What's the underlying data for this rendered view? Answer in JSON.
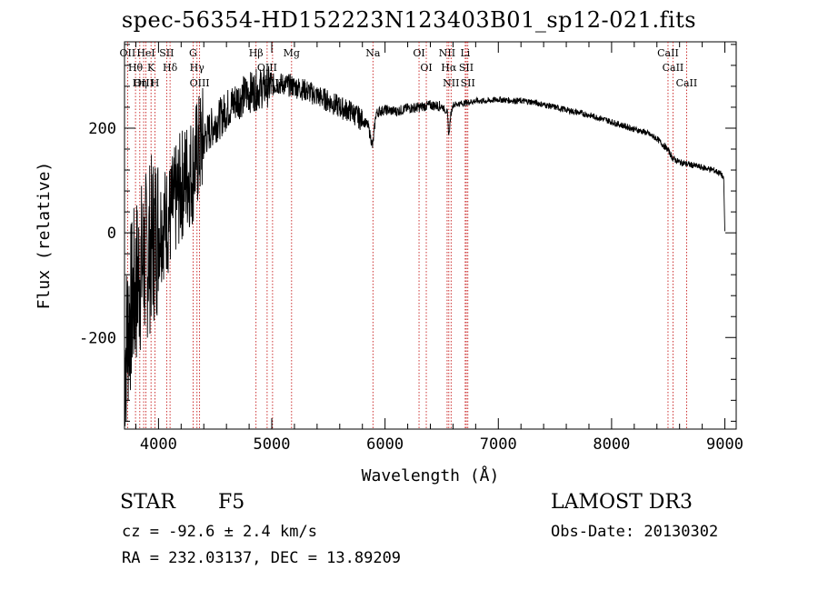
{
  "title": "spec-56354-HD152223N123403B01_sp12-021.fits",
  "footer": {
    "class_label": "STAR",
    "subclass": "F5",
    "cz": "cz = -92.6 ± 2.4 km/s",
    "radec": "RA = 232.03137, DEC =  13.89209",
    "survey": "LAMOST DR3",
    "obs_date": "Obs-Date: 20130302"
  },
  "chart_data": {
    "type": "line",
    "title": "spec-56354-HD152223N123403B01_sp12-021.fits",
    "xlabel": "Wavelength (Å)",
    "ylabel": "Flux (relative)",
    "xlim": [
      3700,
      9100
    ],
    "ylim": [
      -375,
      365
    ],
    "x_ticks": [
      4000,
      5000,
      6000,
      7000,
      8000,
      9000
    ],
    "y_ticks": [
      -200,
      0,
      200
    ],
    "grid": false,
    "series": [
      {
        "name": "flux",
        "x": [
          3700,
          3740,
          3780,
          3820,
          3860,
          3900,
          3950,
          4000,
          4050,
          4100,
          4150,
          4200,
          4250,
          4300,
          4340,
          4400,
          4450,
          4500,
          4550,
          4600,
          4650,
          4700,
          4750,
          4800,
          4850,
          4900,
          4950,
          5000,
          5050,
          5100,
          5150,
          5200,
          5300,
          5400,
          5500,
          5600,
          5700,
          5800,
          5850,
          5890,
          5900,
          5920,
          5950,
          6000,
          6100,
          6200,
          6300,
          6400,
          6500,
          6550,
          6563,
          6580,
          6600,
          6700,
          6800,
          6900,
          7000,
          7100,
          7200,
          7300,
          7400,
          7500,
          7600,
          7700,
          7800,
          7900,
          8000,
          8100,
          8200,
          8300,
          8400,
          8500,
          8540,
          8600,
          8660,
          8700,
          8800,
          8900,
          8970,
          8990,
          9000
        ],
        "values": [
          -250,
          -160,
          -120,
          -80,
          -60,
          -40,
          -10,
          10,
          20,
          30,
          60,
          90,
          110,
          120,
          150,
          180,
          195,
          210,
          220,
          235,
          245,
          255,
          262,
          268,
          272,
          276,
          278,
          282,
          285,
          284,
          282,
          280,
          272,
          262,
          252,
          240,
          232,
          215,
          205,
          165,
          185,
          228,
          232,
          235,
          232,
          238,
          240,
          244,
          242,
          230,
          185,
          225,
          245,
          248,
          252,
          252,
          255,
          253,
          252,
          250,
          245,
          240,
          235,
          230,
          225,
          219,
          212,
          205,
          198,
          192,
          180,
          158,
          142,
          135,
          132,
          130,
          125,
          120,
          112,
          100,
          3
        ]
      }
    ],
    "lines": [
      {
        "label": "Hθ",
        "wavelength": 3797
      },
      {
        "label": "OII",
        "wavelength": 3727
      },
      {
        "label": "OIII",
        "wavelength": 3869
      },
      {
        "label": "K",
        "wavelength": 3934
      },
      {
        "label": "HeI",
        "wavelength": 3889
      },
      {
        "label": "Hη",
        "wavelength": 3835
      },
      {
        "label": "H",
        "wavelength": 3969
      },
      {
        "label": "SII",
        "wavelength": 4072
      },
      {
        "label": "Hδ",
        "wavelength": 4102
      },
      {
        "label": "OIII",
        "wavelength": 4363
      },
      {
        "label": "Hγ",
        "wavelength": 4340
      },
      {
        "label": "G",
        "wavelength": 4305
      },
      {
        "label": "OIII",
        "wavelength": 5007
      },
      {
        "label": "OIII",
        "wavelength": 4959
      },
      {
        "label": "Hβ",
        "wavelength": 4861
      },
      {
        "label": "Mg",
        "wavelength": 5175
      },
      {
        "label": "Na",
        "wavelength": 5893
      },
      {
        "label": "OI",
        "wavelength": 6300
      },
      {
        "label": "OI",
        "wavelength": 6364
      },
      {
        "label": "Hα",
        "wavelength": 6563
      },
      {
        "label": "NII",
        "wavelength": 6548
      },
      {
        "label": "NII",
        "wavelength": 6583
      },
      {
        "label": "SII",
        "wavelength": 6717
      },
      {
        "label": "SII",
        "wavelength": 6731
      },
      {
        "label": "Li",
        "wavelength": 6708
      },
      {
        "label": "CaII",
        "wavelength": 8498
      },
      {
        "label": "CaII",
        "wavelength": 8542
      },
      {
        "label": "CaII",
        "wavelength": 8662
      }
    ]
  }
}
